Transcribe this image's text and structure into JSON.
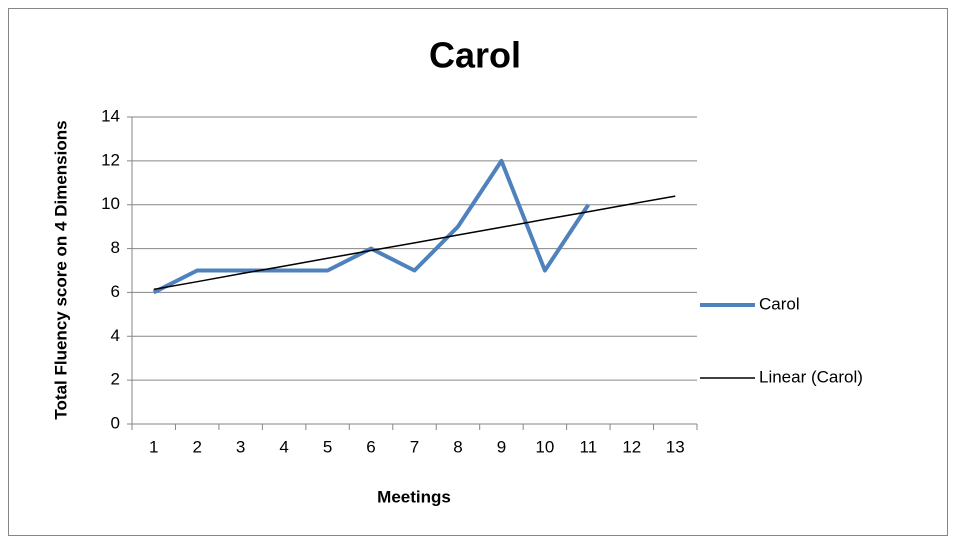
{
  "chart_data": {
    "type": "line",
    "title": "Carol",
    "x_label": "Meetings",
    "y_label": "Total Fluency score on 4 Dimensions",
    "categories": [
      "1",
      "2",
      "3",
      "4",
      "5",
      "6",
      "7",
      "8",
      "9",
      "10",
      "11",
      "12",
      "13"
    ],
    "series": [
      {
        "name": "Carol",
        "color": "#4f81bd",
        "values": [
          6,
          7,
          7,
          7,
          7,
          8,
          7,
          9,
          12,
          7,
          10,
          null,
          null
        ]
      },
      {
        "name": "Linear (Carol)",
        "color": "#000000",
        "values": [
          6.14,
          6.49,
          6.85,
          7.2,
          7.56,
          7.91,
          8.26,
          8.62,
          8.97,
          9.33,
          9.68,
          10.04,
          10.39
        ]
      }
    ],
    "ylim": [
      0,
      14
    ],
    "yticks": [
      0,
      2,
      4,
      6,
      8,
      10,
      12,
      14
    ],
    "grid": true,
    "legend": "right"
  }
}
